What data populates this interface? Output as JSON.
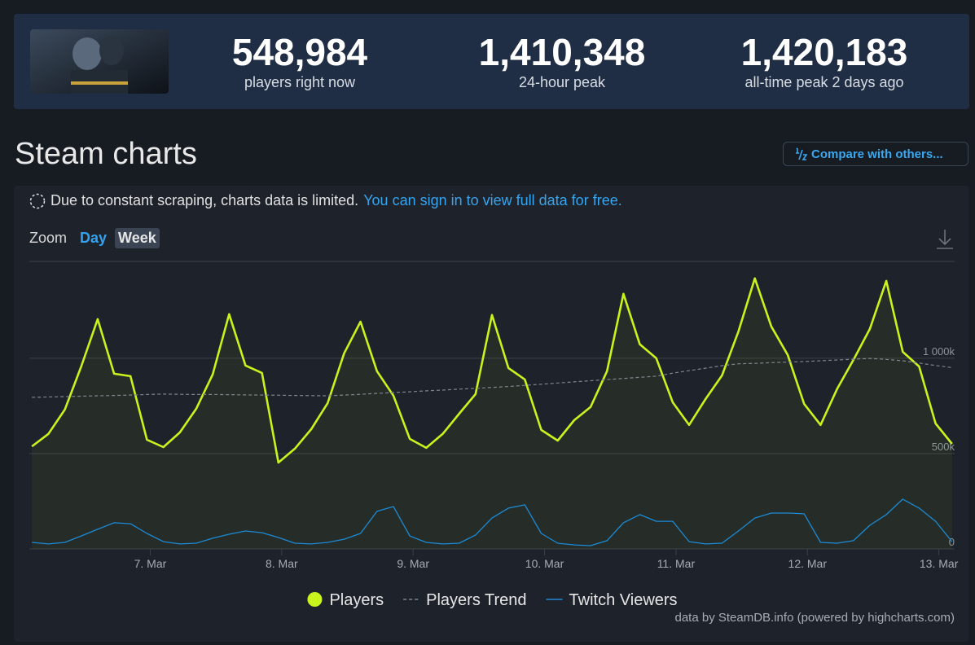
{
  "header": {
    "stats": [
      {
        "value": "548,984",
        "label": "players right now"
      },
      {
        "value": "1,410,348",
        "label": "24-hour peak"
      },
      {
        "value": "1,420,183",
        "label": "all-time peak 2 days ago"
      }
    ]
  },
  "section_title": "Steam charts",
  "compare_button": "Compare with others...",
  "notice": {
    "text": "Due to constant scraping, charts data is limited.",
    "link": "You can sign in to view full data for free."
  },
  "zoom": {
    "label": "Zoom",
    "options": [
      "Day",
      "Week"
    ]
  },
  "credits": "data by SteamDB.info (powered by highcharts.com)",
  "chart_data": {
    "type": "line",
    "x": [
      6.1,
      6.225,
      6.35,
      6.475,
      6.6,
      6.725,
      6.85,
      6.975,
      7.1,
      7.225,
      7.35,
      7.475,
      7.6,
      7.725,
      7.85,
      7.975,
      8.1,
      8.225,
      8.35,
      8.475,
      8.6,
      8.725,
      8.85,
      8.975,
      9.1,
      9.225,
      9.35,
      9.475,
      9.6,
      9.725,
      9.85,
      9.975,
      10.1,
      10.225,
      10.35,
      10.475,
      10.6,
      10.725,
      10.85,
      10.975,
      11.1,
      11.225,
      11.35,
      11.475,
      11.6,
      11.725,
      11.85,
      11.975,
      12.1,
      12.225,
      12.35,
      12.475,
      12.6,
      12.725,
      12.85,
      12.975,
      13.1
    ],
    "xlim": [
      6.08,
      13.12
    ],
    "xticks": [
      {
        "value": 7,
        "label": "7. Mar"
      },
      {
        "value": 8,
        "label": "8. Mar"
      },
      {
        "value": 9,
        "label": "9. Mar"
      },
      {
        "value": 10,
        "label": "10. Mar"
      },
      {
        "value": 11,
        "label": "11. Mar"
      },
      {
        "value": 12,
        "label": "12. Mar"
      },
      {
        "value": 13,
        "label": "13. Mar"
      }
    ],
    "ylim": [
      0,
      1508000
    ],
    "yticks": [
      0,
      {
        "value": 500000,
        "label": "500k"
      },
      {
        "value": 1000000,
        "label": "1 000k"
      }
    ],
    "grid": true,
    "legend": "bottom",
    "series": [
      {
        "name": "Players",
        "color": "#c8f31d",
        "marker": true,
        "area": true,
        "values": [
          538000,
          603000,
          731000,
          957000,
          1205000,
          919000,
          906000,
          573000,
          534000,
          611000,
          735000,
          915000,
          1231000,
          962000,
          923000,
          453000,
          526000,
          628000,
          765000,
          1026000,
          1192000,
          932000,
          804000,
          577000,
          530000,
          603000,
          709000,
          812000,
          1227000,
          949000,
          889000,
          624000,
          568000,
          675000,
          744000,
          932000,
          1338000,
          1073000,
          1000000,
          769000,
          650000,
          786000,
          910000,
          1141000,
          1419000,
          1167000,
          1017000,
          761000,
          650000,
          838000,
          992000,
          1154000,
          1406000,
          1034000,
          957000,
          658000,
          551000
        ]
      },
      {
        "name": "Players Trend",
        "color": "#80858d",
        "dashed": true,
        "values": [
          795000,
          797000,
          799000,
          801000,
          803000,
          805000,
          807000,
          810000,
          812000,
          811000,
          810000,
          810000,
          809000,
          808000,
          807000,
          806000,
          805000,
          804000,
          803000,
          807000,
          811000,
          816000,
          820000,
          824000,
          829000,
          833000,
          838000,
          842000,
          847000,
          852000,
          858000,
          864000,
          870000,
          876000,
          882000,
          888000,
          894000,
          900000,
          906000,
          922000,
          935000,
          948000,
          961000,
          971000,
          973000,
          977000,
          980000,
          983000,
          987000,
          991000,
          995000,
          999000,
          994000,
          987000,
          975000,
          962000,
          951000
        ]
      },
      {
        "name": "Twitch Viewers",
        "color": "#1c8ad4",
        "values": [
          34000,
          26000,
          34000,
          68000,
          103000,
          137000,
          132000,
          81000,
          38000,
          26000,
          30000,
          56000,
          77000,
          94000,
          85000,
          60000,
          30000,
          26000,
          34000,
          51000,
          81000,
          197000,
          222000,
          68000,
          34000,
          26000,
          30000,
          73000,
          162000,
          214000,
          231000,
          81000,
          30000,
          21000,
          17000,
          43000,
          137000,
          180000,
          145000,
          145000,
          38000,
          26000,
          30000,
          94000,
          162000,
          188000,
          188000,
          184000,
          34000,
          30000,
          43000,
          124000,
          180000,
          261000,
          214000,
          145000,
          38000
        ]
      }
    ]
  }
}
